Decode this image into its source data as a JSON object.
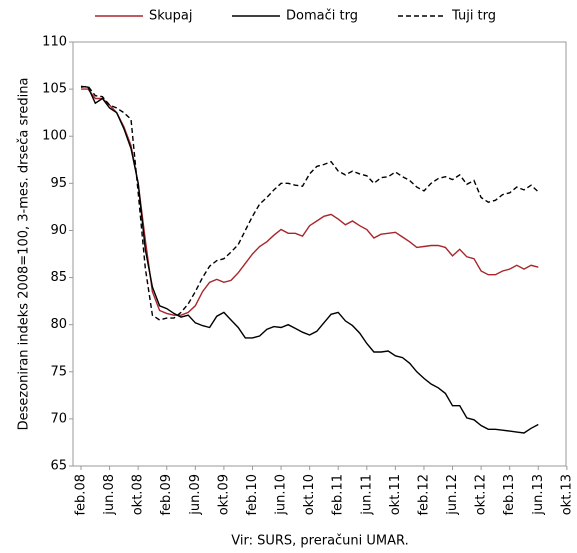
{
  "chart_data": {
    "type": "line",
    "y_label": "Desezoniran indeks 2008=100, 3-mes. drseča sredina",
    "source": "Vir: SURS, preračuni UMAR.",
    "categories": [
      "feb.08",
      null,
      null,
      null,
      "jun.08",
      null,
      null,
      null,
      "okt.08",
      null,
      null,
      null,
      "feb.09",
      null,
      null,
      null,
      "jun.09",
      null,
      null,
      null,
      "okt.09",
      null,
      null,
      null,
      "feb.10",
      null,
      null,
      null,
      "jun.10",
      null,
      null,
      null,
      "okt.10",
      null,
      null,
      null,
      "feb.11",
      null,
      null,
      null,
      "jun.11",
      null,
      null,
      null,
      "okt.11",
      null,
      null,
      null,
      "feb.12",
      null,
      null,
      null,
      "jun.12",
      null,
      null,
      null,
      "okt.12",
      null,
      null,
      null,
      "feb.13",
      null,
      null,
      null,
      "jun.13",
      null,
      null,
      null,
      "okt.13"
    ],
    "series": [
      {
        "name": "Skupaj",
        "color": "#a8262b",
        "dash": false,
        "values": [
          105,
          105,
          104,
          104,
          103.3,
          102.5,
          101,
          99,
          95,
          89,
          83.5,
          81.5,
          81.2,
          81,
          81,
          81.3,
          82,
          83.5,
          84.5,
          84.8,
          84.5,
          84.7,
          85.5,
          86.5,
          87.5,
          88.3,
          88.8,
          89.5,
          90.1,
          89.7,
          89.7,
          89.4,
          90.5,
          91,
          91.5,
          91.7,
          91.2,
          90.6,
          91,
          90.5,
          90.1,
          89.2,
          89.6,
          89.7,
          89.8,
          89.3,
          88.8,
          88.2,
          88.3,
          88.4,
          88.4,
          88.2,
          87.3,
          88,
          87.2,
          87,
          85.7,
          85.3,
          85.3,
          85.7,
          85.9,
          86.3,
          85.9,
          86.3,
          86.1,
          null,
          null,
          null,
          null
        ]
      },
      {
        "name": "Domači trg",
        "color": "#000000",
        "dash": false,
        "values": [
          105.3,
          105.2,
          103.5,
          104,
          103,
          102.5,
          100.8,
          98.7,
          95,
          88,
          84,
          82,
          81.7,
          81.2,
          80.8,
          81,
          80.2,
          79.9,
          79.7,
          80.9,
          81.3,
          80.5,
          79.7,
          78.6,
          78.6,
          78.8,
          79.5,
          79.8,
          79.7,
          80,
          79.6,
          79.2,
          78.9,
          79.3,
          80.2,
          81.1,
          81.3,
          80.4,
          79.9,
          79.1,
          78,
          77.1,
          77.1,
          77.2,
          76.7,
          76.5,
          75.9,
          75,
          74.3,
          73.7,
          73.3,
          72.7,
          71.4,
          71.4,
          70.1,
          69.9,
          69.3,
          68.9,
          68.9,
          68.8,
          68.7,
          68.6,
          68.5,
          69,
          69.4,
          null,
          null,
          null,
          null
        ]
      },
      {
        "name": "Tuji trg",
        "color": "#000000",
        "dash": true,
        "values": [
          105.2,
          105.3,
          104.3,
          104.2,
          103.3,
          103,
          102.5,
          101.8,
          94,
          86,
          81,
          80.5,
          80.7,
          80.7,
          81.3,
          82.2,
          83.5,
          85,
          86.2,
          86.8,
          87,
          87.7,
          88.5,
          90,
          91.5,
          92.8,
          93.5,
          94.3,
          95,
          95,
          94.8,
          94.7,
          96,
          96.8,
          97,
          97.3,
          96.3,
          95.9,
          96.3,
          96,
          95.8,
          95,
          95.6,
          95.7,
          96.2,
          95.7,
          95.3,
          94.6,
          94.2,
          95,
          95.5,
          95.7,
          95.4,
          95.9,
          94.9,
          95.3,
          93.5,
          93,
          93.2,
          93.8,
          94,
          94.6,
          94.3,
          94.8,
          94.1,
          null,
          null,
          null,
          null
        ]
      }
    ],
    "ylim": [
      65,
      110
    ],
    "yticks": [
      65,
      70,
      75,
      80,
      85,
      90,
      95,
      100,
      105,
      110
    ],
    "grid": false
  }
}
